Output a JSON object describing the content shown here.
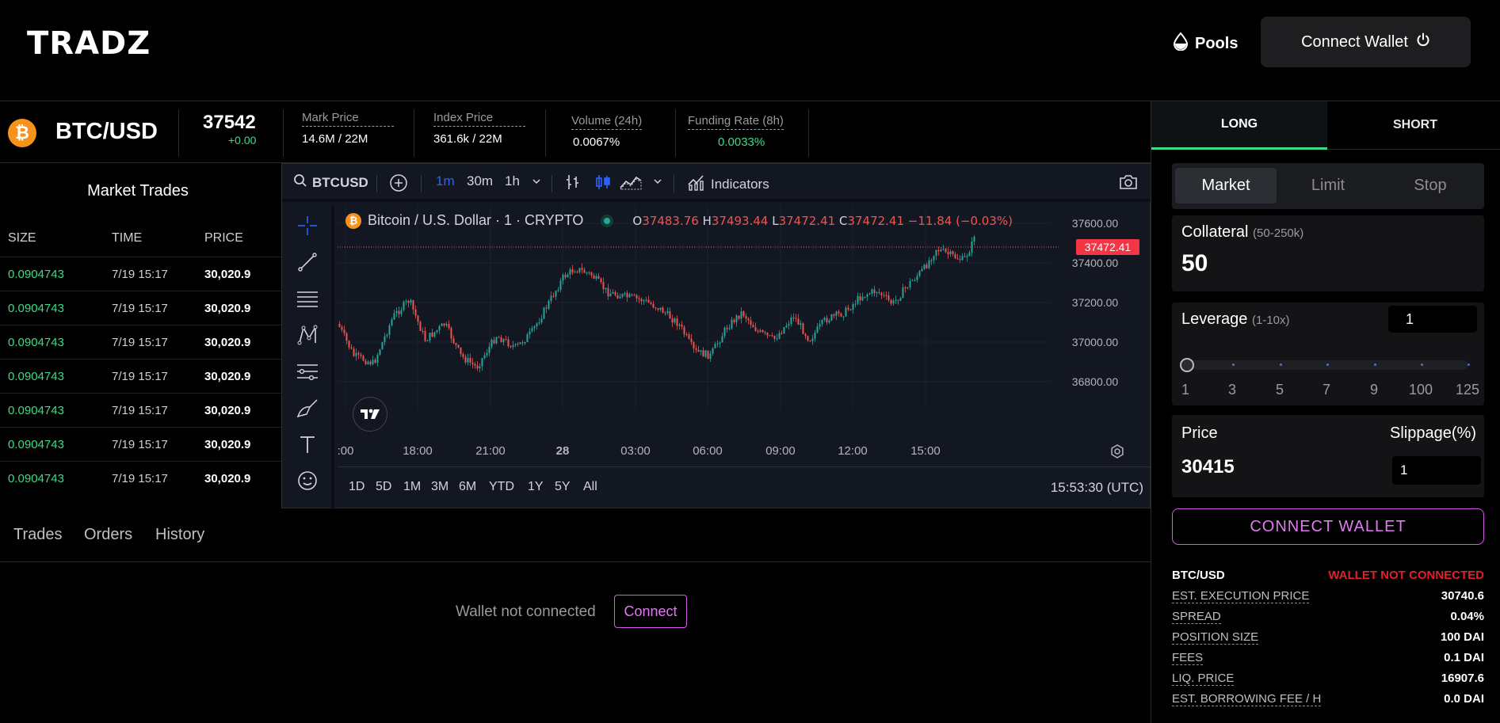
{
  "header": {
    "logo": "TRADZ",
    "pools_label": "Pools",
    "connect_wallet_label": "Connect Wallet"
  },
  "ticker": {
    "pair": "BTC/USD",
    "icon_glyph": "₿",
    "last_price": "37542",
    "change": "+0.00",
    "stats": [
      {
        "label": "Mark Price",
        "value": "14.6M / 22M"
      },
      {
        "label": "Index Price",
        "value": "361.6k / 22M"
      },
      {
        "label": "Volume (24h)",
        "value": "0.0067%"
      },
      {
        "label": "Funding Rate (8h)",
        "value": "0.0033%"
      }
    ]
  },
  "market_trades": {
    "title": "Market Trades",
    "columns": [
      "SIZE",
      "TIME",
      "PRICE"
    ],
    "rows": [
      {
        "size": "0.0904743",
        "time": "7/19 15:17",
        "price": "30,020.9"
      },
      {
        "size": "0.0904743",
        "time": "7/19 15:17",
        "price": "30,020.9"
      },
      {
        "size": "0.0904743",
        "time": "7/19 15:17",
        "price": "30,020.9"
      },
      {
        "size": "0.0904743",
        "time": "7/19 15:17",
        "price": "30,020.9"
      },
      {
        "size": "0.0904743",
        "time": "7/19 15:17",
        "price": "30,020.9"
      },
      {
        "size": "0.0904743",
        "time": "7/19 15:17",
        "price": "30,020.9"
      },
      {
        "size": "0.0904743",
        "time": "7/19 15:17",
        "price": "30,020.9"
      }
    ]
  },
  "chart": {
    "symbol": "BTCUSD",
    "intervals": [
      "1m",
      "30m",
      "1h"
    ],
    "active_interval": "1m",
    "indicators_label": "Indicators",
    "legend_title": "Bitcoin / U.S. Dollar · 1 · CRYPTO",
    "ohlc": {
      "o_label": "O",
      "o": "37483.76",
      "h_label": "H",
      "h": "37493.44",
      "l_label": "L",
      "l": "37472.41",
      "c_label": "C",
      "c": "37472.41",
      "change": "−11.84 (−0.03%)"
    },
    "current_price_tag": "37472.41",
    "y_ticks": [
      "37600.00",
      "37400.00",
      "37200.00",
      "37000.00",
      "36800.00"
    ],
    "x_ticks": [
      ":00",
      "18:00",
      "21:00",
      "28",
      "03:00",
      "06:00",
      "09:00",
      "12:00",
      "15:00"
    ],
    "ranges": [
      "1D",
      "5D",
      "1M",
      "3M",
      "6M",
      "YTD",
      "1Y",
      "5Y",
      "All"
    ],
    "clock": "15:53:30 (UTC)",
    "colors": {
      "up": "#26a69a",
      "down": "#ef5350",
      "bg": "#131722"
    }
  },
  "bottom_panel": {
    "tabs": [
      "Trades",
      "Orders",
      "History"
    ],
    "wallet_msg": "Wallet not connected",
    "connect_label": "Connect"
  },
  "order_panel": {
    "tabs": [
      "LONG",
      "SHORT"
    ],
    "order_types": [
      "Market",
      "Limit",
      "Stop"
    ],
    "collateral_label": "Collateral",
    "collateral_range": "(50-250k)",
    "collateral_value": "50",
    "leverage_label": "Leverage",
    "leverage_range": "(1-10x)",
    "leverage_value": "1",
    "leverage_marks": [
      "1",
      "3",
      "5",
      "7",
      "9",
      "100",
      "125"
    ],
    "price_label": "Price",
    "price_value": "30415",
    "slippage_label": "Slippage(%)",
    "slippage_value": "1",
    "connect_wallet_label": "CONNECT WALLET",
    "info_header": {
      "pair": "BTC/USD",
      "status": "WALLET NOT CONNECTED"
    },
    "info_rows": [
      {
        "k": "EST. EXECUTION PRICE",
        "v": "30740.6"
      },
      {
        "k": "SPREAD",
        "v": "0.04%"
      },
      {
        "k": "POSITION SIZE",
        "v": "100 DAI"
      },
      {
        "k": "FEES",
        "v": "0.1 DAI"
      },
      {
        "k": "LIQ. PRICE",
        "v": "16907.6"
      },
      {
        "k": "EST. BORROWING FEE / H",
        "v": "0.0 DAI"
      }
    ]
  }
}
